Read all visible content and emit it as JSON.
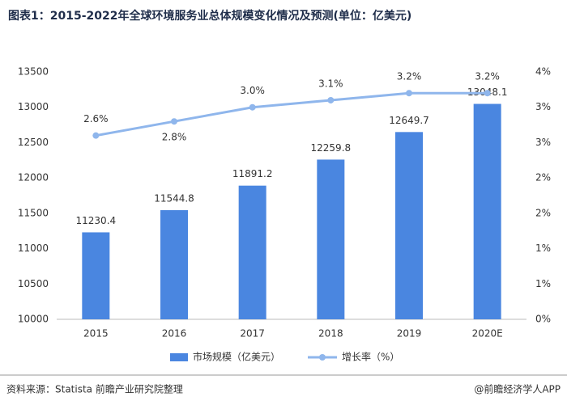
{
  "chart_data": {
    "type": "bar-line",
    "title": "图表1：2015-2022年全球环境服务业总体规模变化情况及预测(单位：亿美元)",
    "categories": [
      "2015",
      "2016",
      "2017",
      "2018",
      "2019",
      "2020E"
    ],
    "series": [
      {
        "name": "市场规模（亿美元）",
        "type": "bar",
        "color": "#4a86e0",
        "values": [
          11230.4,
          11544.8,
          11891.2,
          12259.8,
          12649.7,
          13048.1
        ]
      },
      {
        "name": "增长率（%）",
        "type": "line",
        "axis": "y2",
        "color": "#8fb6ec",
        "values": [
          2.6,
          2.8,
          3.0,
          3.1,
          3.2,
          3.2
        ],
        "value_labels": [
          "2.6%",
          "2.8%",
          "3.0%",
          "3.1%",
          "3.2%",
          "3.2%"
        ]
      }
    ],
    "ylim": [
      10000,
      13500
    ],
    "yticks": [
      10000,
      10500,
      11000,
      11500,
      12000,
      12500,
      13000,
      13500
    ],
    "y2lim": [
      0,
      3.5
    ],
    "y2ticks": [
      {
        "value": 0,
        "label": "0%"
      },
      {
        "value": 0.5,
        "label": "1%"
      },
      {
        "value": 1,
        "label": "1%"
      },
      {
        "value": 1.5,
        "label": "2%"
      },
      {
        "value": 2,
        "label": "2%"
      },
      {
        "value": 2.5,
        "label": "3%"
      },
      {
        "value": 3,
        "label": "3%"
      },
      {
        "value": 3.5,
        "label": "4%"
      }
    ],
    "grid": false,
    "legend": "bottom",
    "source": "资料来源：Statista 前瞻产业研究院整理",
    "credit": "@前瞻经济学人APP"
  }
}
